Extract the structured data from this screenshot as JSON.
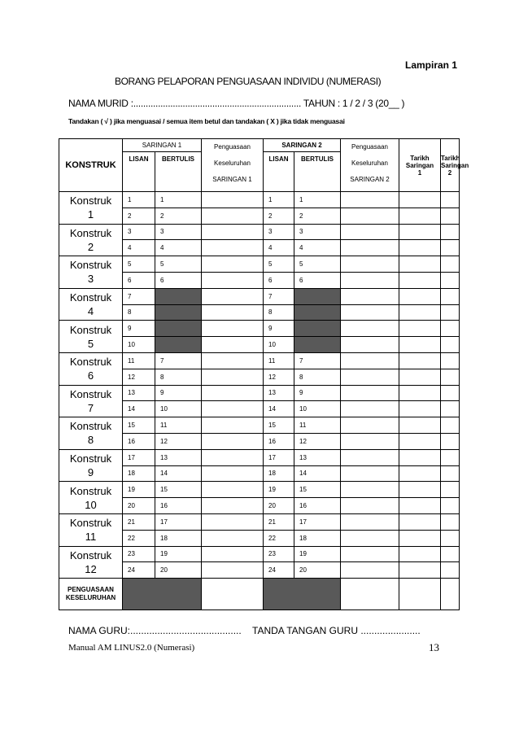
{
  "header": {
    "appendix": "Lampiran 1",
    "title": "BORANG PELAPORAN PENGUASAAN INDIVIDU (NUMERASI)",
    "student": "NAMA MURID :.................................................................... TAHUN : 1 / 2 / 3 (20__ )",
    "instruction": "Tandakan ( √ ) jika menguasai / semua item betul dan tandakan ( X ) jika tidak menguasai"
  },
  "table": {
    "headers": {
      "konstruk": "KONSTRUK",
      "saringan1": "SARINGAN 1",
      "saringan2": "SARINGAN 2",
      "lisan1": "LISAN",
      "bertulis1": "BERTULIS",
      "lisan2": "LISAN",
      "bertulis2": "BERTULIS",
      "penguasaan1": [
        "Penguasaan",
        "Keseluruhan",
        "SARINGAN 1"
      ],
      "penguasaan2": [
        "Penguasaan",
        "Keseluruhan",
        "SARINGAN 2"
      ],
      "tarikh1": "Tarikh\nSaringan\n1",
      "tarikh2": "Tarikh\nSaringan\n2"
    },
    "rows": [
      {
        "konstruk": "Konstruk\n1",
        "items": [
          [
            "1",
            "1",
            "1",
            "1"
          ],
          [
            "2",
            "2",
            "2",
            "2"
          ]
        ]
      },
      {
        "konstruk": "Konstruk\n2",
        "items": [
          [
            "3",
            "3",
            "3",
            "3"
          ],
          [
            "4",
            "4",
            "4",
            "4"
          ]
        ]
      },
      {
        "konstruk": "Konstruk\n3",
        "items": [
          [
            "5",
            "5",
            "5",
            "5"
          ],
          [
            "6",
            "6",
            "6",
            "6"
          ]
        ]
      },
      {
        "konstruk": "Konstruk\n4",
        "items": [
          [
            "7",
            null,
            "7",
            null
          ],
          [
            "8",
            null,
            "8",
            null
          ]
        ]
      },
      {
        "konstruk": "Konstruk\n5",
        "items": [
          [
            "9",
            null,
            "9",
            null
          ],
          [
            "10",
            null,
            "10",
            null
          ]
        ]
      },
      {
        "konstruk": "Konstruk\n6",
        "items": [
          [
            "11",
            "7",
            "11",
            "7"
          ],
          [
            "12",
            "8",
            "12",
            "8"
          ]
        ]
      },
      {
        "konstruk": "Konstruk\n7",
        "items": [
          [
            "13",
            "9",
            "13",
            "9"
          ],
          [
            "14",
            "10",
            "14",
            "10"
          ]
        ]
      },
      {
        "konstruk": "Konstruk\n8",
        "items": [
          [
            "15",
            "11",
            "15",
            "11"
          ],
          [
            "16",
            "12",
            "16",
            "12"
          ]
        ]
      },
      {
        "konstruk": "Konstruk\n9",
        "items": [
          [
            "17",
            "13",
            "17",
            "13"
          ],
          [
            "18",
            "14",
            "18",
            "14"
          ]
        ]
      },
      {
        "konstruk": "Konstruk\n10",
        "items": [
          [
            "19",
            "15",
            "19",
            "15"
          ],
          [
            "20",
            "16",
            "20",
            "16"
          ]
        ]
      },
      {
        "konstruk": "Konstruk\n11",
        "items": [
          [
            "21",
            "17",
            "21",
            "17"
          ],
          [
            "22",
            "18",
            "22",
            "18"
          ]
        ]
      },
      {
        "konstruk": "Konstruk\n12",
        "items": [
          [
            "23",
            "19",
            "23",
            "19"
          ],
          [
            "24",
            "20",
            "24",
            "20"
          ]
        ]
      }
    ],
    "footer": "PENGUASAAN\nKESELURUHAN"
  },
  "footer": {
    "teacher": "NAMA GURU:.........................................",
    "signature": "TANDA TANGAN GURU ......................",
    "manual": "Manual AM LINUS2.0  (Numerasi)",
    "page": "13"
  }
}
